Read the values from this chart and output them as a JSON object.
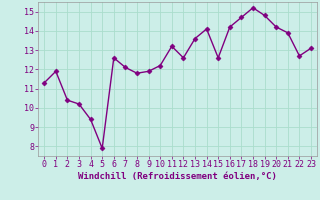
{
  "x": [
    0,
    1,
    2,
    3,
    4,
    5,
    6,
    7,
    8,
    9,
    10,
    11,
    12,
    13,
    14,
    15,
    16,
    17,
    18,
    19,
    20,
    21,
    22,
    23
  ],
  "y": [
    11.3,
    11.9,
    10.4,
    10.2,
    9.4,
    7.9,
    12.6,
    12.1,
    11.8,
    11.9,
    12.2,
    13.2,
    12.6,
    13.6,
    14.1,
    12.6,
    14.2,
    14.7,
    15.2,
    14.8,
    14.2,
    13.9,
    12.7,
    13.1
  ],
  "line_color": "#800080",
  "marker": "D",
  "marker_size": 2.5,
  "bg_color": "#cceee8",
  "grid_color": "#aaddcc",
  "xlabel": "Windchill (Refroidissement éolien,°C)",
  "xlabel_color": "#800080",
  "ylim": [
    7.5,
    15.5
  ],
  "yticks": [
    8,
    9,
    10,
    11,
    12,
    13,
    14,
    15
  ],
  "xticks": [
    0,
    1,
    2,
    3,
    4,
    5,
    6,
    7,
    8,
    9,
    10,
    11,
    12,
    13,
    14,
    15,
    16,
    17,
    18,
    19,
    20,
    21,
    22,
    23
  ],
  "tick_color": "#800080",
  "tick_fontsize": 6.0,
  "xlabel_fontsize": 6.5,
  "linewidth": 1.0
}
